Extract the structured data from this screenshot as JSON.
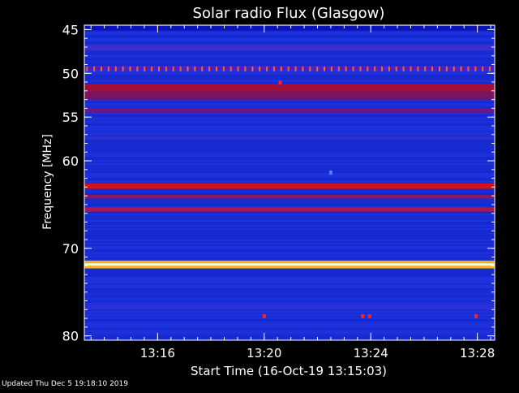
{
  "chart_data": {
    "type": "heatmap",
    "title": "Solar radio Flux (Glasgow)",
    "xlabel": "Start Time (16-Oct-19 13:15:03)",
    "ylabel": "Frequency [MHz]",
    "x_range_minutes": [
      13.25,
      28.65
    ],
    "x_ticks": [
      {
        "label": "13:16",
        "value": 16
      },
      {
        "label": "13:20",
        "value": 20
      },
      {
        "label": "13:24",
        "value": 24
      },
      {
        "label": "13:28",
        "value": 28
      }
    ],
    "ylim": [
      44.5,
      80.5
    ],
    "y_ticks": [
      {
        "label": "45",
        "value": 45
      },
      {
        "label": "50",
        "value": 50
      },
      {
        "label": "55",
        "value": 55
      },
      {
        "label": "60",
        "value": 60
      },
      {
        "label": "70",
        "value": 70
      },
      {
        "label": "80",
        "value": 80
      }
    ],
    "y_minor_step": 1,
    "background_color": "#1a2ed8",
    "emission_bands": [
      {
        "freq_from": 44.6,
        "freq_to": 45.1,
        "color": "#0a12b8"
      },
      {
        "freq_from": 46.8,
        "freq_to": 47.4,
        "color": "#3b2fd0"
      },
      {
        "freq_from": 49.2,
        "freq_to": 49.8,
        "color": "#4a22c8"
      },
      {
        "freq_from": 51.2,
        "freq_to": 52.1,
        "color": "#a0103a"
      },
      {
        "freq_from": 52.1,
        "freq_to": 53.0,
        "color": "#7a1460"
      },
      {
        "freq_from": 54.0,
        "freq_to": 54.5,
        "color": "#6a1a80"
      },
      {
        "freq_from": 57.2,
        "freq_to": 57.6,
        "color": "#2a30d0"
      },
      {
        "freq_from": 62.6,
        "freq_to": 63.2,
        "color": "#e01010"
      },
      {
        "freq_from": 63.9,
        "freq_to": 64.3,
        "color": "#8a1860"
      },
      {
        "freq_from": 65.3,
        "freq_to": 65.8,
        "color": "#b01848"
      },
      {
        "freq_from": 71.4,
        "freq_to": 71.7,
        "color": "#ffb000"
      },
      {
        "freq_from": 71.7,
        "freq_to": 72.0,
        "color": "#ffffd0"
      },
      {
        "freq_from": 72.0,
        "freq_to": 72.3,
        "color": "#ffb000"
      },
      {
        "freq_from": 76.5,
        "freq_to": 77.0,
        "color": "#3030d8"
      }
    ],
    "periodic_spikes": {
      "freq": 49.5,
      "every_minutes": 0.27,
      "color": "#ff6020"
    },
    "bursts": [
      {
        "time_minutes": 20.6,
        "freq": 51.1,
        "color": "#ff2020"
      },
      {
        "time_minutes": 20.0,
        "freq": 77.8,
        "color": "#ff2020"
      },
      {
        "time_minutes": 23.7,
        "freq": 77.8,
        "color": "#ff2020"
      },
      {
        "time_minutes": 23.95,
        "freq": 77.8,
        "color": "#ff2020"
      },
      {
        "time_minutes": 27.95,
        "freq": 77.8,
        "color": "#ff2020"
      },
      {
        "time_minutes": 22.5,
        "freq": 61.4,
        "color": "#5080ff"
      }
    ]
  },
  "footer": {
    "updated": "Updated Thu Dec  5 19:18:10 2019"
  }
}
